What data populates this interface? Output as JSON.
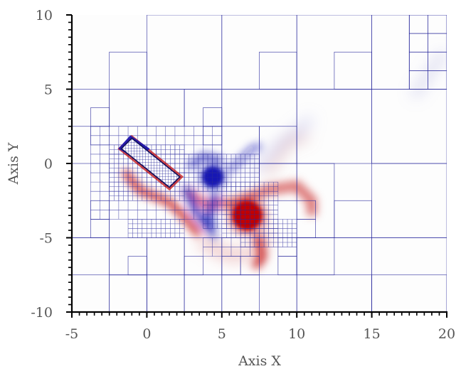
{
  "chart_data": {
    "type": "heatmap",
    "title": "",
    "xlabel": "Axis X",
    "ylabel": "Axis Y",
    "xlim": [
      -5,
      20
    ],
    "ylim": [
      -10,
      10
    ],
    "x_ticks": [
      -5,
      0,
      5,
      10,
      15,
      20
    ],
    "y_ticks": [
      10,
      5,
      0,
      -5,
      -10
    ],
    "colors": {
      "grid": "#2a2a9e",
      "positive": "#c00000",
      "negative": "#1515b4",
      "axis": "#000000",
      "text": "#555555"
    },
    "body_polygon": [
      [
        -1.7,
        1.0
      ],
      [
        -1.0,
        1.7
      ],
      [
        2.2,
        -0.9
      ],
      [
        1.5,
        -1.6
      ]
    ],
    "vortices": [
      {
        "sign": "negative",
        "cx": 4.4,
        "cy": -0.9,
        "rx": 0.7,
        "ry": 0.7
      },
      {
        "sign": "positive",
        "cx": 6.7,
        "cy": -3.5,
        "rx": 1.0,
        "ry": 1.0
      }
    ],
    "mesh_blocks": [
      [
        -5,
        10,
        0,
        5
      ],
      [
        0,
        10,
        5,
        5
      ],
      [
        5,
        10,
        5,
        5
      ],
      [
        10,
        10,
        5,
        5
      ],
      [
        15,
        10,
        2.5,
        5
      ],
      [
        17.5,
        10,
        2.5,
        5
      ],
      [
        -5,
        5,
        2.5,
        2.5
      ],
      [
        -2.5,
        5,
        2.5,
        2.5
      ],
      [
        0,
        5,
        2.5,
        2.5
      ],
      [
        2.5,
        5,
        2.5,
        2.5
      ],
      [
        5,
        5,
        5,
        5
      ],
      [
        10,
        5,
        5,
        5
      ],
      [
        15,
        5,
        5,
        5
      ],
      [
        -5,
        0,
        2.5,
        5
      ],
      [
        -5,
        -5,
        2.5,
        5
      ],
      [
        -5,
        -7.5,
        5,
        2.5
      ],
      [
        5,
        -5,
        5,
        2.5
      ],
      [
        10,
        0,
        2.5,
        5
      ],
      [
        10,
        -5,
        2.5,
        2.5
      ],
      [
        12.5,
        -2.5,
        2.5,
        2.5
      ],
      [
        10,
        -5,
        5,
        5
      ],
      [
        15,
        0,
        5,
        5
      ],
      [
        15,
        -5,
        5,
        5
      ],
      [
        10,
        -7.5,
        5,
        2.5
      ],
      [
        15,
        -7.5,
        5,
        2.5
      ],
      [
        -2.5,
        -7.5,
        2.5,
        2.5
      ],
      [
        0,
        -7.5,
        2.5,
        2.5
      ],
      [
        2.5,
        -7.5,
        2.5,
        2.5
      ],
      [
        5,
        -7.5,
        2.5,
        2.5
      ],
      [
        -5,
        -10,
        5,
        2.5
      ],
      [
        0,
        -10,
        2.5,
        2.5
      ],
      [
        2.5,
        -10,
        5,
        2.5
      ],
      [
        7.5,
        -10,
        5,
        2.5
      ],
      [
        12.5,
        -10,
        5,
        2.5
      ],
      [
        17.5,
        -10,
        2.5,
        2.5
      ],
      [
        17.5,
        10,
        1.25,
        1.25
      ],
      [
        18.75,
        10,
        1.25,
        1.25
      ],
      [
        17.5,
        8.75,
        1.25,
        1.25
      ],
      [
        18.75,
        8.75,
        1.25,
        1.25
      ],
      [
        17.5,
        7.5,
        1.25,
        1.25
      ],
      [
        18.75,
        7.5,
        1.25,
        1.25
      ],
      [
        17.5,
        6.25,
        1.25,
        1.25
      ],
      [
        18.75,
        6.25,
        1.25,
        1.25
      ],
      [
        12.5,
        7.5,
        2.5,
        2.5
      ],
      [
        7.5,
        7.5,
        2.5,
        2.5
      ],
      [
        -2.5,
        7.5,
        2.5,
        2.5
      ],
      [
        5,
        2.5,
        2.5,
        2.5
      ],
      [
        7.5,
        2.5,
        2.5,
        2.5
      ],
      [
        5,
        0,
        2.5,
        2.5
      ],
      [
        7.5,
        0,
        2.5,
        2.5
      ],
      [
        -2.5,
        -5,
        2.5,
        2.5
      ],
      [
        0,
        -5,
        2.5,
        2.5
      ],
      [
        2.5,
        -5,
        2.5,
        2.5
      ],
      [
        -3.75,
        3.75,
        1.25,
        1.25
      ],
      [
        -3.75,
        2.5,
        1.25,
        1.25
      ],
      [
        -3.75,
        -2.5,
        1.25,
        1.25
      ],
      [
        -3.75,
        -3.75,
        1.25,
        1.25
      ],
      [
        3.75,
        2.5,
        1.25,
        1.25
      ],
      [
        3.75,
        3.75,
        1.25,
        1.25
      ],
      [
        8.75,
        -5,
        1.25,
        1.25
      ],
      [
        8.75,
        -6.25,
        1.25,
        1.25
      ],
      [
        10,
        -2.5,
        1.25,
        1.25
      ],
      [
        10,
        -3.75,
        1.25,
        1.25
      ],
      [
        -1.25,
        -6.25,
        1.25,
        1.25
      ],
      [
        2.5,
        -6.25,
        1.25,
        1.25
      ],
      [
        5,
        -6.25,
        1.25,
        1.25
      ],
      [
        6.25,
        -6.25,
        1.25,
        1.25
      ]
    ],
    "fine_regions": [
      [
        -3.75,
        2.5,
        8.75,
        6.25,
        0.625
      ],
      [
        -2.5,
        1.25,
        5,
        3.75,
        0.3125
      ],
      [
        2.5,
        0.625,
        5.0,
        2.5,
        0.3125
      ],
      [
        5.0,
        -1.25,
        3.75,
        3.75,
        0.3125
      ],
      [
        3.75,
        -2.5,
        2.5,
        1.875,
        0.3125
      ],
      [
        6.25,
        -3.75,
        3.75,
        1.875,
        0.3125
      ],
      [
        -1.25,
        -3.75,
        3.75,
        1.25,
        0.3125
      ],
      [
        3.75,
        -5,
        3.75,
        1.25,
        0.625
      ]
    ]
  }
}
